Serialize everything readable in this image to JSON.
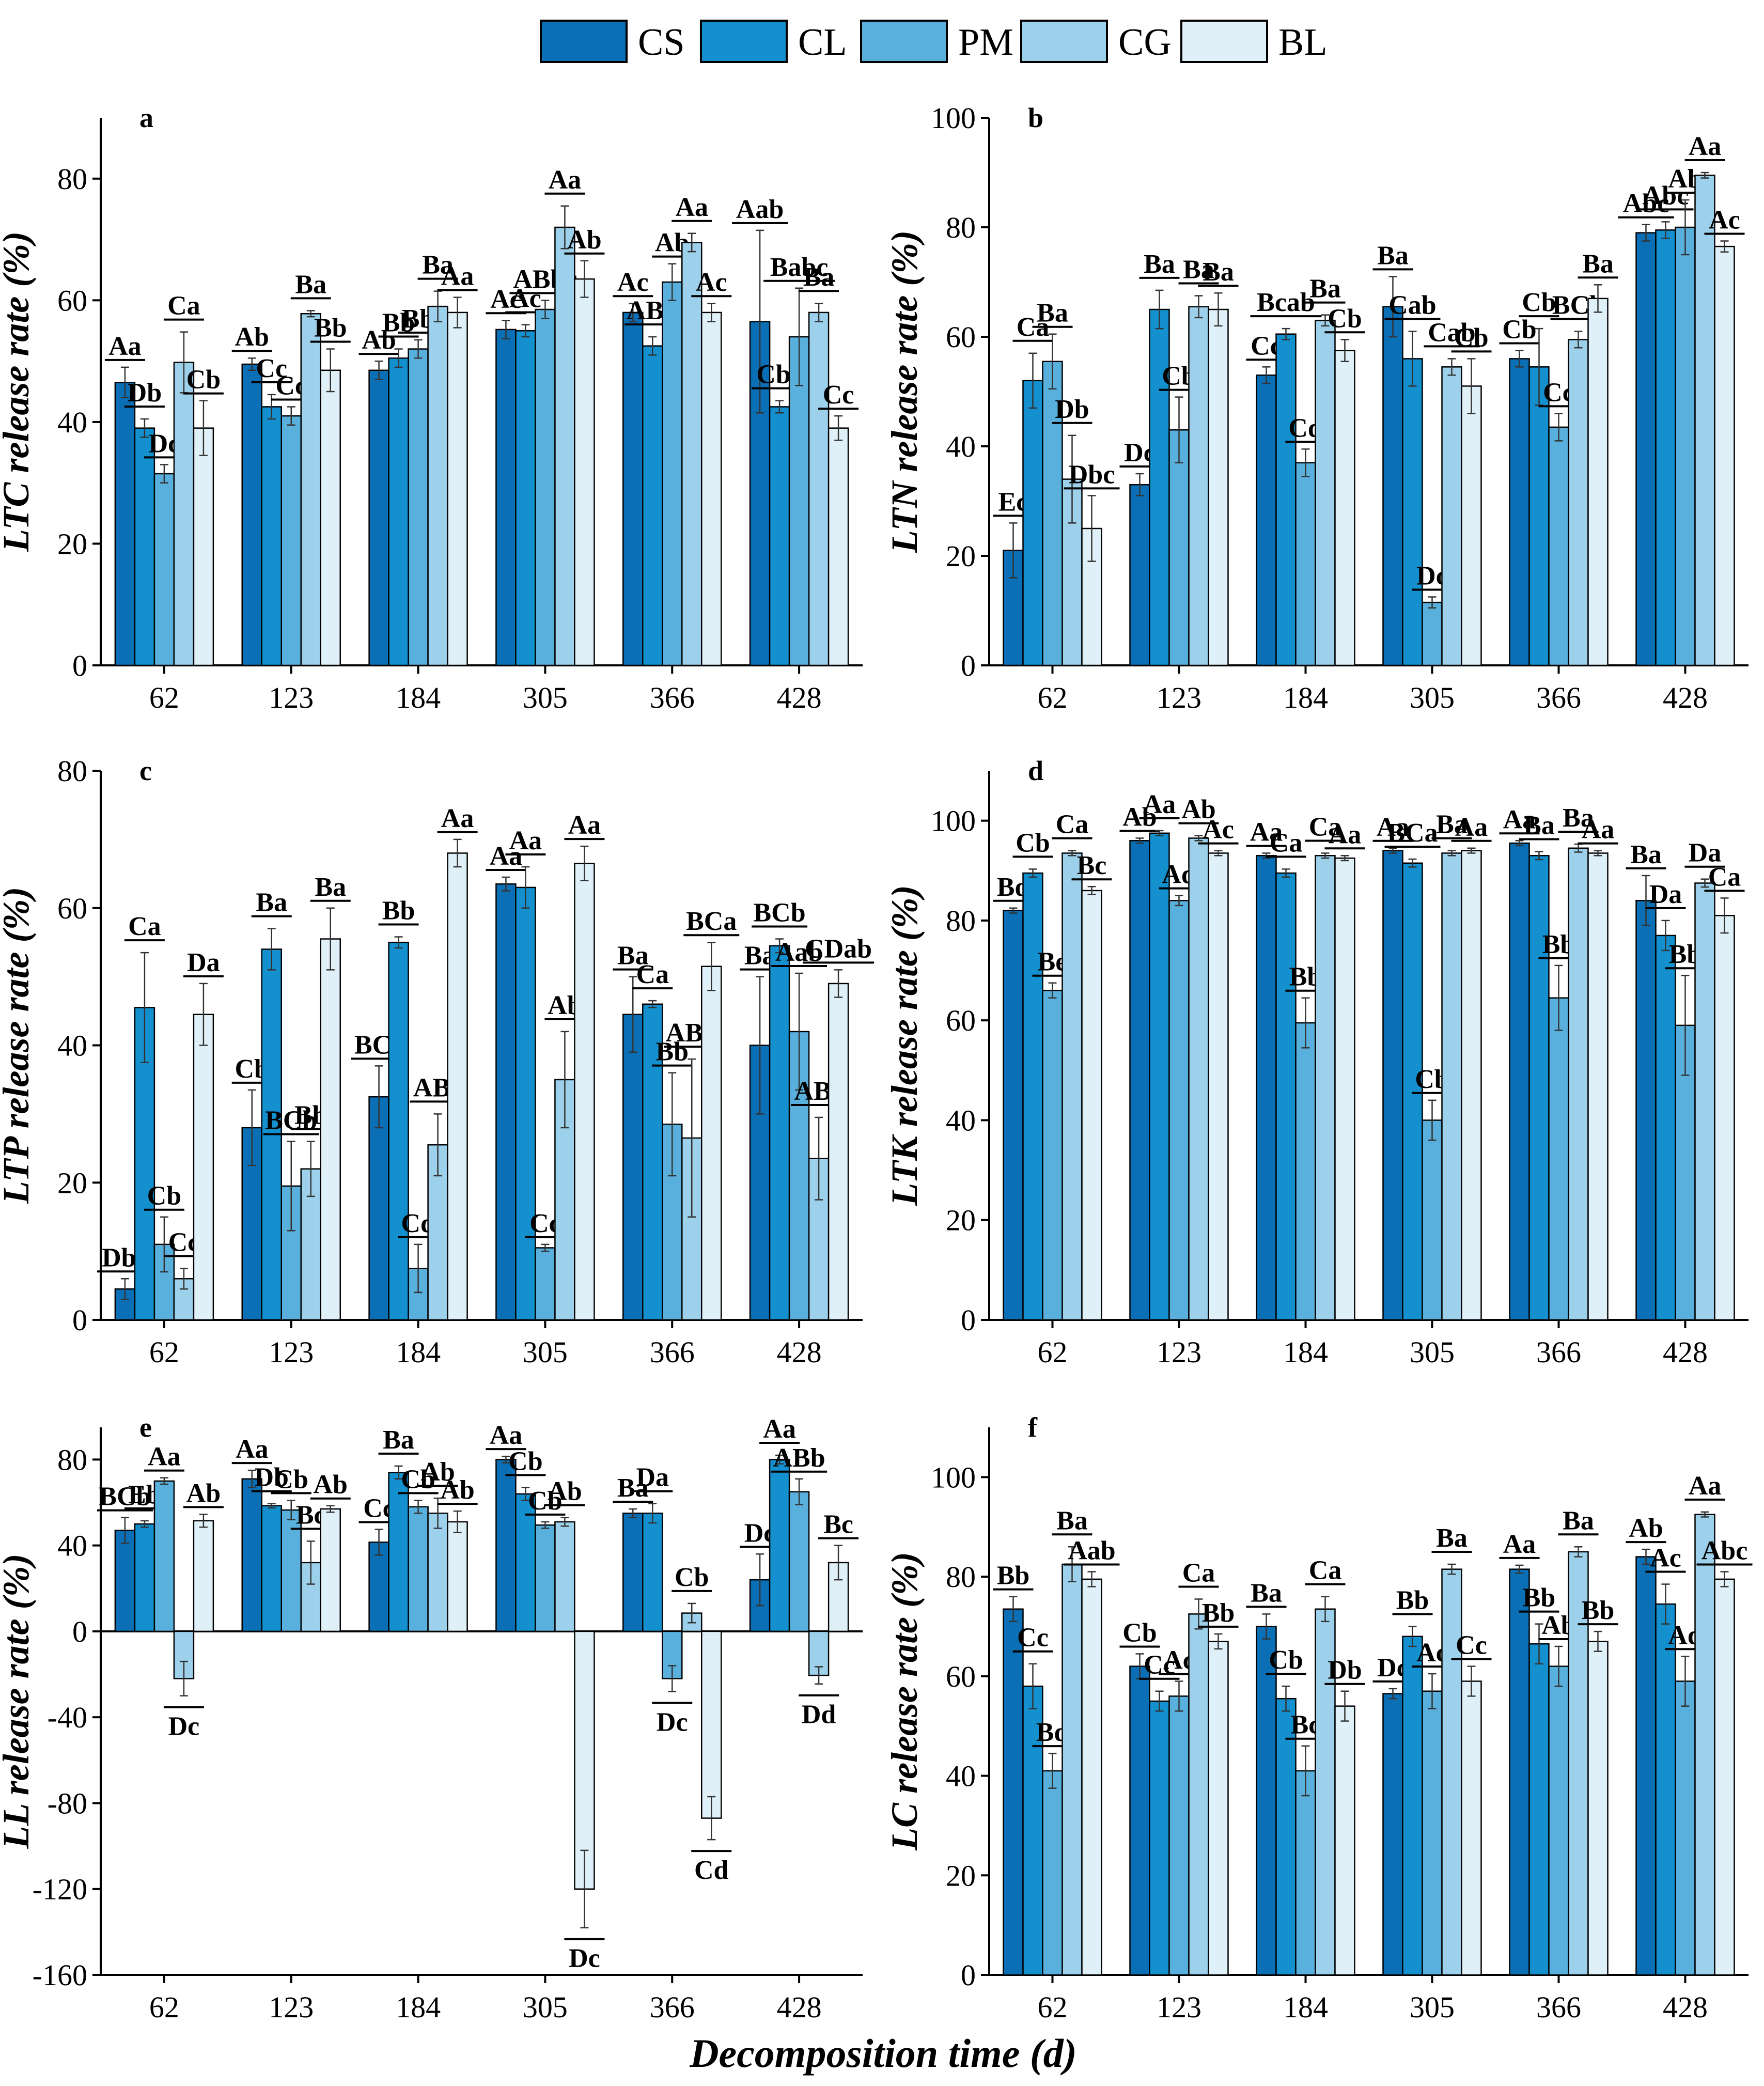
{
  "legend": {
    "series": [
      "CS",
      "CL",
      "PM",
      "CG",
      "BL"
    ],
    "colors": [
      "#0b6fb5",
      "#1490cf",
      "#5ab0dc",
      "#9dd0ea",
      "#dff0f8"
    ]
  },
  "global_xlabel": "Decomposition time (d)",
  "chart_data": [
    {
      "panel": "a",
      "type": "bar",
      "ylabel": "LTC release rate (%)",
      "categories": [
        "62",
        "123",
        "184",
        "305",
        "366",
        "428"
      ],
      "ylim": [
        0,
        90
      ],
      "yticks": [
        0,
        20,
        40,
        60,
        80
      ],
      "series": [
        {
          "name": "CS",
          "values": [
            46.5,
            49.5,
            48.5,
            55.2,
            58.0,
            56.5
          ],
          "errors": [
            2.5,
            1.0,
            1.5,
            1.5,
            1.5,
            15.0
          ],
          "letters": [
            "Aa",
            "Ab",
            "Ab",
            "Ac",
            "Ac",
            "Aab"
          ]
        },
        {
          "name": "CL",
          "values": [
            39.0,
            42.5,
            50.5,
            55.0,
            52.5,
            42.5
          ],
          "errors": [
            1.5,
            2.0,
            1.5,
            1.0,
            1.5,
            1.0
          ],
          "letters": [
            "Db",
            "Cc",
            "Bb",
            "Ac",
            "ABd",
            "Cbc"
          ]
        },
        {
          "name": "PM",
          "values": [
            31.5,
            41.0,
            52.0,
            58.5,
            63.0,
            54.0
          ],
          "errors": [
            1.5,
            1.5,
            1.5,
            1.5,
            3.0,
            8.0
          ],
          "letters": [
            "Dc",
            "Cc",
            "Bb",
            "ABbc",
            "Ab",
            "Babc"
          ]
        },
        {
          "name": "CG",
          "values": [
            49.8,
            57.8,
            59.0,
            72.0,
            69.5,
            58.0
          ],
          "errors": [
            5.0,
            0.5,
            2.5,
            3.5,
            1.5,
            1.5
          ],
          "letters": [
            "Ca",
            "Ba",
            "Ba",
            "Aa",
            "Aa",
            "Ba"
          ]
        },
        {
          "name": "BL",
          "values": [
            39.0,
            48.5,
            58.0,
            63.5,
            58.0,
            39.0
          ],
          "errors": [
            4.5,
            3.5,
            2.5,
            3.0,
            1.5,
            2.0
          ],
          "letters": [
            "Cb",
            "Bb",
            "Aa",
            "Ab",
            "Ac",
            "Cc"
          ]
        }
      ]
    },
    {
      "panel": "b",
      "type": "bar",
      "ylabel": "LTN release rate (%)",
      "categories": [
        "62",
        "123",
        "184",
        "305",
        "366",
        "428"
      ],
      "ylim": [
        0,
        100
      ],
      "yticks": [
        0,
        20,
        40,
        60,
        80,
        100
      ],
      "series": [
        {
          "name": "CS",
          "values": [
            21.0,
            33.0,
            53.0,
            65.5,
            56.0,
            79.0
          ],
          "errors": [
            5.0,
            2.0,
            1.5,
            5.5,
            1.5,
            1.5
          ],
          "letters": [
            "Ec",
            "Dc",
            "Cc",
            "Ba",
            "Cb",
            "Abc"
          ]
        },
        {
          "name": "CL",
          "values": [
            52.0,
            65.0,
            60.5,
            56.0,
            54.5,
            79.5
          ],
          "errors": [
            5.0,
            3.5,
            1.0,
            5.0,
            7.0,
            1.5
          ],
          "letters": [
            "Ca",
            "Ba",
            "Bcab",
            "Cab",
            "Cb",
            "Abc"
          ]
        },
        {
          "name": "PM",
          "values": [
            55.5,
            43.0,
            37.0,
            11.5,
            43.5,
            80.0
          ],
          "errors": [
            5.0,
            6.0,
            2.5,
            1.0,
            2.5,
            5.0
          ],
          "letters": [
            "Ba",
            "Cb",
            "Cd",
            "Dc",
            "Cc",
            "Ab"
          ]
        },
        {
          "name": "CG",
          "values": [
            34.0,
            65.5,
            63.0,
            54.5,
            59.5,
            89.5
          ],
          "errors": [
            8.0,
            2.0,
            1.0,
            1.5,
            1.5,
            0.5
          ],
          "letters": [
            "Db",
            "Ba",
            "Ba",
            "Cab",
            "BCb",
            "Aa"
          ]
        },
        {
          "name": "BL",
          "values": [
            25.0,
            65.0,
            57.5,
            51.0,
            67.0,
            76.5
          ],
          "errors": [
            6.0,
            3.0,
            2.0,
            5.0,
            2.5,
            1.0
          ],
          "letters": [
            "Dbc",
            "Ba",
            "Cb",
            "Cb",
            "Ba",
            "Ac"
          ]
        }
      ]
    },
    {
      "panel": "c",
      "type": "bar",
      "ylabel": "LTP release rate (%)",
      "categories": [
        "62",
        "123",
        "184",
        "305",
        "366",
        "428"
      ],
      "ylim": [
        0,
        80
      ],
      "yticks": [
        0,
        20,
        40,
        60,
        80
      ],
      "series": [
        {
          "name": "CS",
          "values": [
            4.5,
            28.0,
            32.5,
            63.5,
            44.5,
            40.0
          ],
          "errors": [
            1.5,
            5.5,
            4.5,
            1.0,
            5.5,
            10.0
          ],
          "letters": [
            "Dbc",
            "Cb",
            "BCc",
            "Aa",
            "Ba",
            "Ba"
          ]
        },
        {
          "name": "CL",
          "values": [
            45.5,
            54.0,
            55.0,
            63.0,
            46.0,
            54.5
          ],
          "errors": [
            8.0,
            3.0,
            0.8,
            3.0,
            0.5,
            1.0
          ],
          "letters": [
            "Ca",
            "Ba",
            "Bb",
            "Aa",
            "Ca",
            "BCb"
          ]
        },
        {
          "name": "PM",
          "values": [
            11.0,
            19.5,
            7.5,
            10.5,
            28.5,
            42.0
          ],
          "errors": [
            4.0,
            6.5,
            3.5,
            0.5,
            7.5,
            8.5
          ],
          "letters": [
            "Cb",
            "BCb",
            "Cd",
            "Cc",
            "Bb",
            "Aab"
          ]
        },
        {
          "name": "CG",
          "values": [
            6.0,
            22.0,
            25.5,
            35.0,
            26.5,
            23.5
          ],
          "errors": [
            1.5,
            4.0,
            4.5,
            7.0,
            11.5,
            6.0
          ],
          "letters": [
            "Cc",
            "Bb",
            "ABc",
            "Ab",
            "ABb",
            "ABc"
          ]
        },
        {
          "name": "BL",
          "values": [
            44.5,
            55.5,
            68.0,
            66.5,
            51.5,
            49.0
          ],
          "errors": [
            4.5,
            4.5,
            2.0,
            2.5,
            3.5,
            2.0
          ],
          "letters": [
            "Da",
            "Ba",
            "Aa",
            "Aa",
            "BCa",
            "CDab"
          ]
        }
      ]
    },
    {
      "panel": "d",
      "type": "bar",
      "ylabel": "LTK release rate (%)",
      "categories": [
        "62",
        "123",
        "184",
        "305",
        "366",
        "428"
      ],
      "ylim": [
        0,
        110
      ],
      "yticks": [
        0,
        20,
        40,
        60,
        80,
        100
      ],
      "series": [
        {
          "name": "CS",
          "values": [
            82.0,
            96.0,
            93.0,
            94.0,
            95.5,
            84.0
          ],
          "errors": [
            0.5,
            0.5,
            0.5,
            0.5,
            0.5,
            5.0
          ],
          "letters": [
            "Bd",
            "Ab",
            "Aa",
            "Aa",
            "Aa",
            "Ba"
          ]
        },
        {
          "name": "CL",
          "values": [
            89.5,
            97.5,
            89.5,
            91.5,
            93.0,
            77.0
          ],
          "errors": [
            0.8,
            0.5,
            0.8,
            0.8,
            0.8,
            3.0
          ],
          "letters": [
            "Cb",
            "Aa",
            "Ca",
            "BCa",
            "Ba",
            "Da"
          ]
        },
        {
          "name": "PM",
          "values": [
            66.0,
            84.0,
            59.5,
            40.0,
            64.5,
            59.0
          ],
          "errors": [
            1.5,
            1.0,
            5.0,
            4.0,
            6.5,
            10.0
          ],
          "letters": [
            "Be",
            "Ad",
            "Bb",
            "Cb",
            "Bb",
            "Bb"
          ]
        },
        {
          "name": "CG",
          "values": [
            93.5,
            96.5,
            93.0,
            93.5,
            94.5,
            87.5
          ],
          "errors": [
            0.5,
            0.5,
            0.5,
            0.5,
            0.8,
            0.8
          ],
          "letters": [
            "Ca",
            "Ab",
            "Ca",
            "Ba",
            "Ba",
            "Da"
          ]
        },
        {
          "name": "BL",
          "values": [
            86.0,
            93.5,
            92.5,
            94.0,
            93.5,
            81.0
          ],
          "errors": [
            0.8,
            0.5,
            0.5,
            0.5,
            0.5,
            3.5
          ],
          "letters": [
            "Bc",
            "Ac",
            "Aa",
            "Aa",
            "Aa",
            "Ca"
          ]
        }
      ]
    },
    {
      "panel": "e",
      "type": "bar",
      "ylabel": "LL release rate (%)",
      "categories": [
        "62",
        "123",
        "184",
        "305",
        "366",
        "428"
      ],
      "ylim": [
        -160,
        95
      ],
      "yticks": [
        -160,
        -120,
        -80,
        -40,
        0,
        40,
        80
      ],
      "series": [
        {
          "name": "CS",
          "values": [
            47.0,
            71.0,
            41.5,
            80.0,
            55.0,
            24.0
          ],
          "errors": [
            6.0,
            4.0,
            6.0,
            1.5,
            2.0,
            12.0
          ],
          "letters": [
            "BCb",
            "Aa",
            "Cc",
            "Aa",
            "Ba",
            "Dc"
          ]
        },
        {
          "name": "CL",
          "values": [
            50.0,
            58.5,
            74.0,
            64.0,
            55.0,
            80.0
          ],
          "errors": [
            1.5,
            1.0,
            3.0,
            3.0,
            4.5,
            2.0
          ],
          "letters": [
            "Eb",
            "Db",
            "Ba",
            "Cb",
            "Da",
            "Aa"
          ]
        },
        {
          "name": "PM",
          "values": [
            70.0,
            56.5,
            58.0,
            49.5,
            -22.0,
            65.0
          ],
          "errors": [
            1.5,
            4.5,
            3.0,
            1.5,
            6.0,
            6.0
          ],
          "letters": [
            "Aa",
            "Cb",
            "Cb",
            "Cb",
            "Dc",
            "ABb"
          ]
        },
        {
          "name": "CG",
          "values": [
            -22.0,
            32.0,
            55.0,
            51.0,
            8.5,
            -20.5
          ],
          "errors": [
            8.0,
            10.0,
            7.0,
            2.0,
            4.5,
            4.0
          ],
          "letters": [
            "Dc",
            "Bc",
            "Ab",
            "Ab",
            "Cb",
            "Dd"
          ]
        },
        {
          "name": "BL",
          "values": [
            51.5,
            57.0,
            51.0,
            -120.0,
            -87.0,
            32.0
          ],
          "errors": [
            3.0,
            1.5,
            5.0,
            18.0,
            10.0,
            8.0
          ],
          "letters": [
            "Ab",
            "Ab",
            "Ab",
            "Dc",
            "Cd",
            "Bc"
          ]
        }
      ]
    },
    {
      "panel": "f",
      "type": "bar",
      "ylabel": "LC release rate (%)",
      "categories": [
        "62",
        "123",
        "184",
        "305",
        "366",
        "428"
      ],
      "ylim": [
        0,
        110
      ],
      "yticks": [
        0,
        20,
        40,
        60,
        80,
        100
      ],
      "series": [
        {
          "name": "CS",
          "values": [
            73.5,
            62.0,
            70.0,
            56.5,
            81.5,
            84.0
          ],
          "errors": [
            2.5,
            2.5,
            2.5,
            1.0,
            0.8,
            1.5
          ],
          "letters": [
            "Bb",
            "Cb",
            "Ba",
            "Dc",
            "Aa",
            "Ab"
          ]
        },
        {
          "name": "CL",
          "values": [
            58.0,
            55.0,
            55.5,
            68.0,
            66.5,
            74.5
          ],
          "errors": [
            4.5,
            2.0,
            2.5,
            2.0,
            4.0,
            4.0
          ],
          "letters": [
            "Cc",
            "Cc",
            "Cb",
            "Bb",
            "Bb",
            "Ac"
          ]
        },
        {
          "name": "PM",
          "values": [
            41.0,
            56.0,
            41.0,
            57.0,
            62.0,
            59.0
          ],
          "errors": [
            3.5,
            3.0,
            5.0,
            3.5,
            4.0,
            5.0
          ],
          "letters": [
            "Bd",
            "Ac",
            "Bc",
            "Ac",
            "Ab",
            "Ad"
          ]
        },
        {
          "name": "CG",
          "values": [
            82.5,
            72.5,
            73.5,
            81.5,
            85.0,
            92.5
          ],
          "errors": [
            3.5,
            3.0,
            2.5,
            1.0,
            1.0,
            0.5
          ],
          "letters": [
            "Ba",
            "Ca",
            "Ca",
            "Ba",
            "Ba",
            "Aa"
          ]
        },
        {
          "name": "BL",
          "values": [
            79.5,
            67.0,
            54.0,
            59.0,
            67.0,
            79.5
          ],
          "errors": [
            1.5,
            1.5,
            3.0,
            3.0,
            2.0,
            1.5
          ],
          "letters": [
            "Aab",
            "Bb",
            "Db",
            "Cc",
            "Bb",
            "Abc"
          ]
        }
      ]
    }
  ]
}
